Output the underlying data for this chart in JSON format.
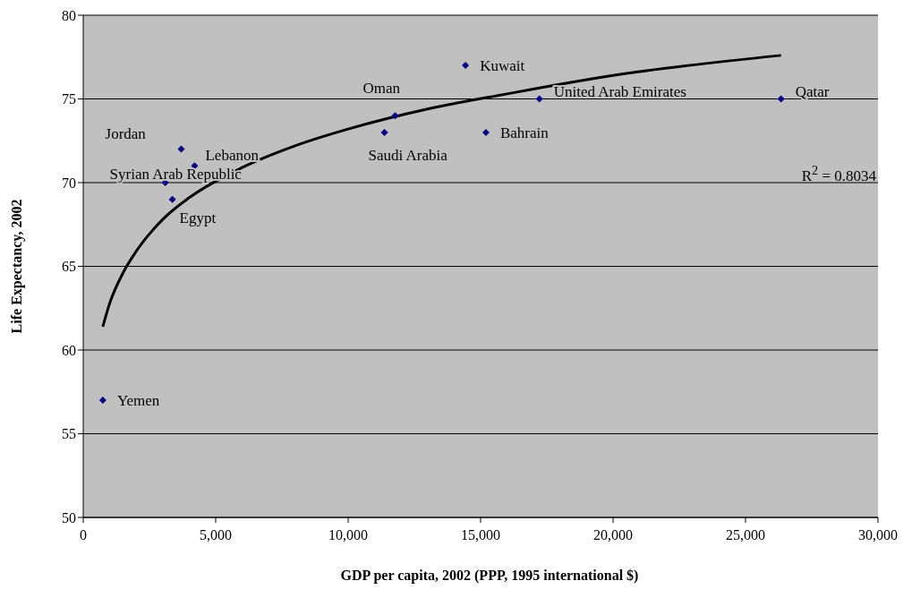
{
  "chart_data": {
    "type": "scatter",
    "xlabel": "GDP per capita, 2002 (PPP, 1995 international $)",
    "ylabel": "Life Expectancy, 2002",
    "series": [
      {
        "type": "scatter",
        "color": "#000080",
        "marker": "diamond",
        "x": [
          740,
          3095,
          3364,
          3700,
          4205,
          11370,
          11773,
          14430,
          15200,
          17220,
          26340
        ],
        "values": [
          57,
          70,
          69,
          72,
          71,
          73,
          74,
          77,
          73,
          75,
          75
        ]
      },
      {
        "type": "line",
        "color": "#000000",
        "marker": "none",
        "line_style": "solid",
        "x": [
          740,
          1000,
          1500,
          2000,
          3000,
          4000,
          6000,
          8000,
          10000,
          13000,
          16000,
          20000,
          26340
        ],
        "values": [
          61.4,
          62.8,
          64.6,
          65.9,
          67.8,
          69.1,
          70.9,
          72.2,
          73.2,
          74.4,
          75.3,
          76.4,
          77.6
        ]
      }
    ],
    "xlim": [
      0,
      30000
    ],
    "xticks": [
      0,
      {
        "value": 5000,
        "label": "5,000"
      },
      {
        "value": 10000,
        "label": "10,000"
      },
      {
        "value": 15000,
        "label": "15,000"
      },
      {
        "value": 20000,
        "label": "20,000"
      },
      {
        "value": 25000,
        "label": "25,000"
      },
      {
        "value": 30000,
        "label": "30,000"
      }
    ],
    "ylim": [
      50,
      80
    ],
    "yticks": [
      50,
      55,
      60,
      65,
      70,
      75,
      80
    ],
    "grid": "y",
    "legend": false,
    "annotations": [
      {
        "text": "Yemen",
        "x": 740,
        "y": 57
      },
      {
        "text": "Syrian Arab Republic",
        "x": 3095,
        "y": 70
      },
      {
        "text": "Egypt",
        "x": 3364,
        "y": 69
      },
      {
        "text": "Jordan",
        "x": 3700,
        "y": 72
      },
      {
        "text": "Lebanon",
        "x": 4205,
        "y": 71
      },
      {
        "text": "Saudi Arabia",
        "x": 11370,
        "y": 73
      },
      {
        "text": "Oman",
        "x": 11773,
        "y": 74
      },
      {
        "text": "Kuwait",
        "x": 14430,
        "y": 77
      },
      {
        "text": "Bahrain",
        "x": 15200,
        "y": 73
      },
      {
        "text": "United Arab Emirates",
        "x": 17220,
        "y": 75
      },
      {
        "text": "Qatar",
        "x": 26340,
        "y": 75
      },
      "R$^{2}$ = 0.8034"
    ]
  }
}
